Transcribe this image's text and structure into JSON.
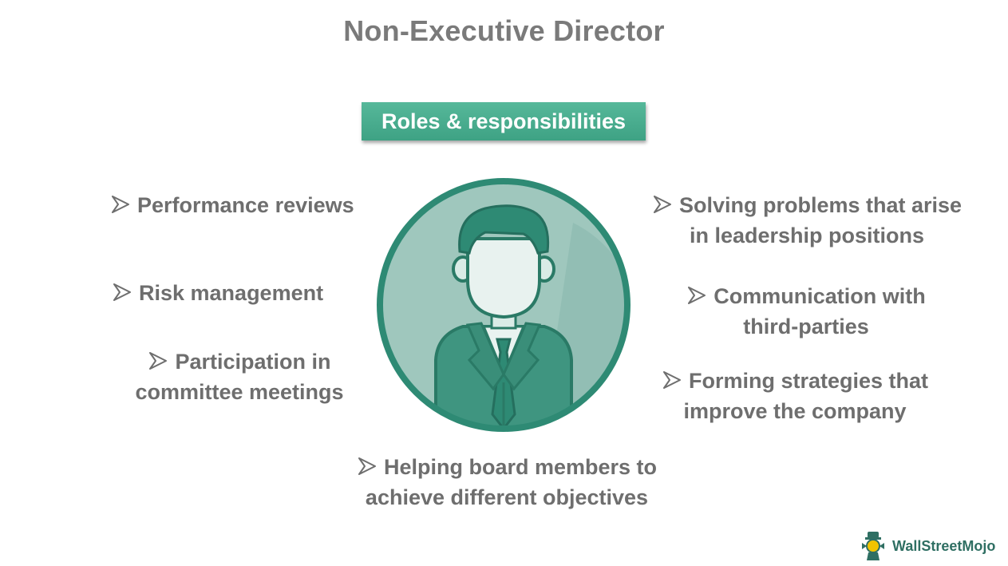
{
  "title": "Non-Executive Director",
  "roles_label": "Roles & responsibilities",
  "left_items": [
    {
      "line1": "Performance reviews",
      "line2": ""
    },
    {
      "line1": "Risk management",
      "line2": ""
    },
    {
      "line1": "Participation in",
      "line2": "committee meetings"
    }
  ],
  "right_items": [
    {
      "line1": "Solving problems that arise",
      "line2": "in leadership positions"
    },
    {
      "line1": "Communication with",
      "line2": "third-parties"
    },
    {
      "line1": "Forming strategies that",
      "line2": "improve the company"
    }
  ],
  "bottom_item": {
    "line1": "Helping board members to",
    "line2": "achieve different objectives"
  },
  "brand": {
    "name": "WallStreetMojo"
  },
  "colors": {
    "accent": "#4aaa8e",
    "avatar_ring": "#2e8a74",
    "avatar_bg": "#9fc7bd",
    "text": "#6e6e6e"
  }
}
